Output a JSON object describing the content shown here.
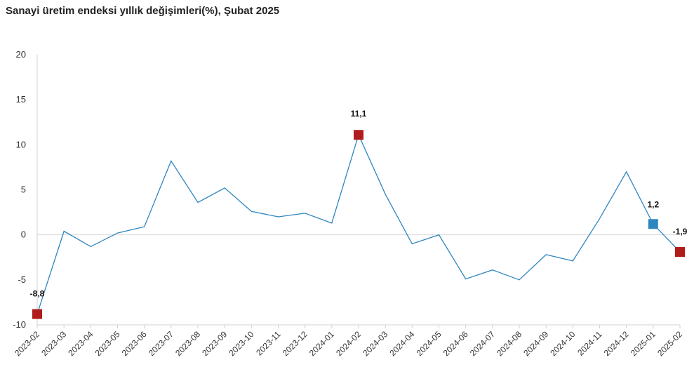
{
  "chart_data": {
    "type": "line",
    "title": "Sanayi üretim endeksi yıllık değişimleri(%), Şubat 2025",
    "xlabel": "",
    "ylabel": "",
    "ylim": [
      -10,
      20
    ],
    "yticks": [
      20,
      15,
      10,
      5,
      0,
      -5,
      -10
    ],
    "grid": "zero-line only",
    "categories": [
      "2023-02",
      "2023-03",
      "2023-04",
      "2023-05",
      "2023-06",
      "2023-07",
      "2023-08",
      "2023-09",
      "2023-10",
      "2023-11",
      "2023-12",
      "2024-01",
      "2024-02",
      "2024-03",
      "2024-04",
      "2024-05",
      "2024-06",
      "2024-07",
      "2024-08",
      "2024-09",
      "2024-10",
      "2024-11",
      "2024-12",
      "2025-01",
      "2025-02"
    ],
    "series": [
      {
        "values": [
          -8.8,
          0.4,
          -1.3,
          0.2,
          0.9,
          8.2,
          3.6,
          5.2,
          2.6,
          2.0,
          2.4,
          1.3,
          11.1,
          4.5,
          -1.0,
          0.0,
          -4.9,
          -3.9,
          -5.0,
          -2.2,
          -2.9,
          1.8,
          7.0,
          1.2,
          -1.9
        ],
        "color": "#2e86c1"
      }
    ],
    "markers": [
      {
        "index": 0,
        "label": "-8,8",
        "color": "#b01c1c"
      },
      {
        "index": 12,
        "label": "11,1",
        "color": "#b01c1c"
      },
      {
        "index": 23,
        "label": "1,2",
        "color": "#2e86c1"
      },
      {
        "index": 24,
        "label": "-1,9",
        "color": "#b01c1c"
      }
    ]
  }
}
